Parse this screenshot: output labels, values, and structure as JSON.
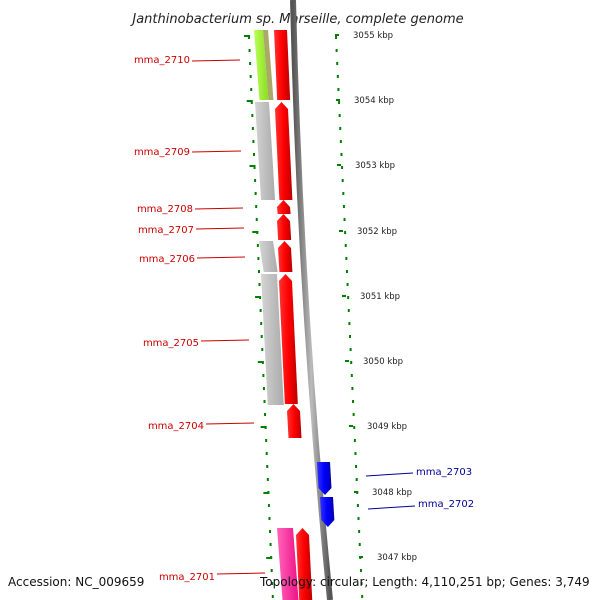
{
  "title": "Janthinobacterium sp. Marseille, complete genome",
  "footer": {
    "accession": "Accession: NC_009659",
    "topology": "Topology: circular; Length: 4,110,251 bp; Genes: 3,749"
  },
  "ticks": [
    {
      "label": "3055 kbp"
    },
    {
      "label": "3054 kbp"
    },
    {
      "label": "3053 kbp"
    },
    {
      "label": "3052 kbp"
    },
    {
      "label": "3051 kbp"
    },
    {
      "label": "3050 kbp"
    },
    {
      "label": "3049 kbp"
    },
    {
      "label": "3048 kbp"
    },
    {
      "label": "3047 kbp"
    }
  ],
  "genes": [
    {
      "label": "mma_2710",
      "strand": "-"
    },
    {
      "label": "mma_2709",
      "strand": "-"
    },
    {
      "label": "mma_2708",
      "strand": "-"
    },
    {
      "label": "mma_2707",
      "strand": "-"
    },
    {
      "label": "mma_2706",
      "strand": "-"
    },
    {
      "label": "mma_2705",
      "strand": "-"
    },
    {
      "label": "mma_2704",
      "strand": "-"
    },
    {
      "label": "mma_2703",
      "strand": "+"
    },
    {
      "label": "mma_2702",
      "strand": "+"
    },
    {
      "label": "mma_2701",
      "strand": "-"
    }
  ],
  "colors": {
    "minus_strand_gene": "#ff0000",
    "plus_strand_gene": "#0000ff",
    "minus_label": "#cc0000",
    "plus_label": "#000099",
    "backbone": "#888888",
    "tick_mark": "#008000",
    "cog_gray": "#c0c0c0",
    "cog_green": "#99ee33",
    "cog_olive": "#aaaa66",
    "cog_pink": "#ff3399"
  }
}
